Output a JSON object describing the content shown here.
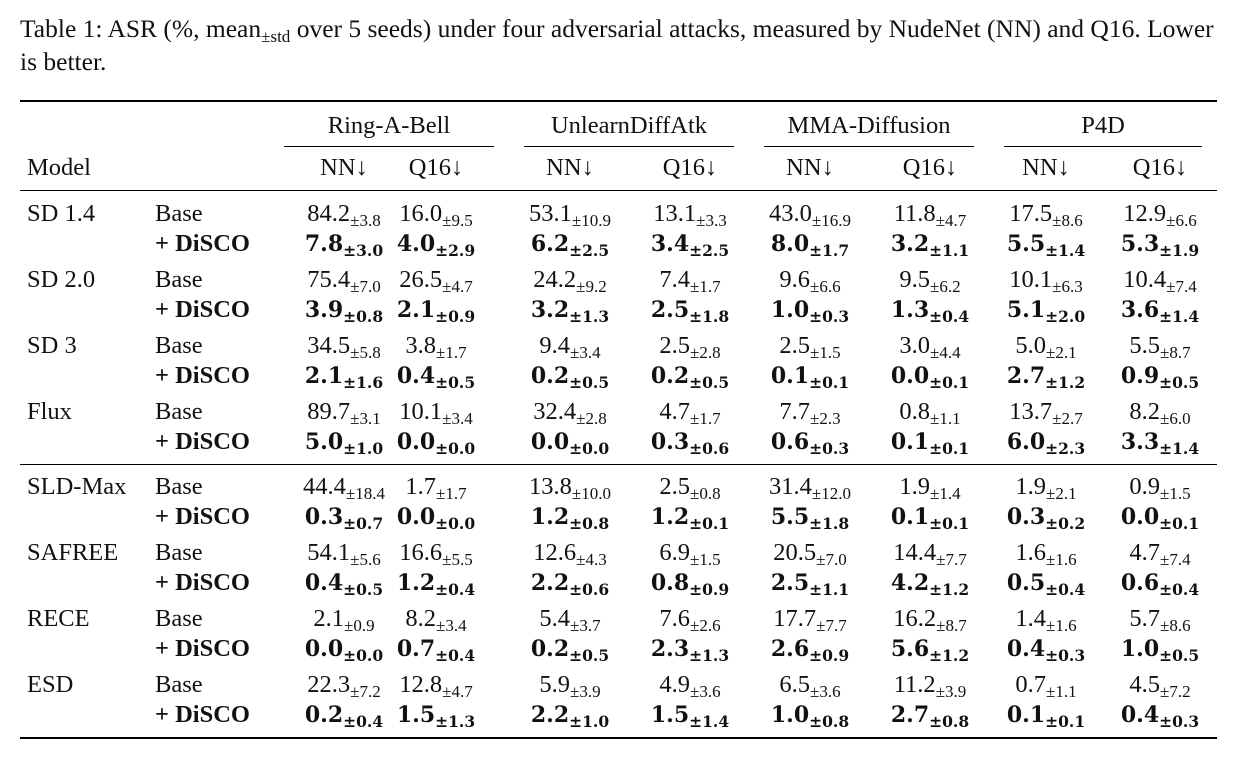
{
  "caption": {
    "pre": "Table 1: ASR (%, mean",
    "sub": "±std",
    "post": " over 5 seeds) under four adversarial attacks, measured by NudeNet (NN) and Q16. Lower is better."
  },
  "header": {
    "model_label": "Model",
    "attacks": [
      "Ring-A-Bell",
      "UnlearnDiffAtk",
      "MMA-Diffusion",
      "P4D"
    ],
    "metrics": [
      "NN↓",
      "Q16↓",
      "NN↓",
      "Q16↓",
      "NN↓",
      "Q16↓",
      "NN↓",
      "Q16↓"
    ]
  },
  "variants": {
    "base": "Base",
    "disco": "+ DiSCO"
  },
  "pm": "±",
  "groups": [
    {
      "models": [
        {
          "name": "SD 1.4",
          "base": [
            [
              "84.2",
              "3.8"
            ],
            [
              "16.0",
              "9.5"
            ],
            [
              "53.1",
              "10.9"
            ],
            [
              "13.1",
              "3.3"
            ],
            [
              "43.0",
              "16.9"
            ],
            [
              "11.8",
              "4.7"
            ],
            [
              "17.5",
              "8.6"
            ],
            [
              "12.9",
              "6.6"
            ]
          ],
          "disco": [
            [
              "7.8",
              "3.0"
            ],
            [
              "4.0",
              "2.9"
            ],
            [
              "6.2",
              "2.5"
            ],
            [
              "3.4",
              "2.5"
            ],
            [
              "8.0",
              "1.7"
            ],
            [
              "3.2",
              "1.1"
            ],
            [
              "5.5",
              "1.4"
            ],
            [
              "5.3",
              "1.9"
            ]
          ]
        },
        {
          "name": "SD 2.0",
          "base": [
            [
              "75.4",
              "7.0"
            ],
            [
              "26.5",
              "4.7"
            ],
            [
              "24.2",
              "9.2"
            ],
            [
              "7.4",
              "1.7"
            ],
            [
              "9.6",
              "6.6"
            ],
            [
              "9.5",
              "6.2"
            ],
            [
              "10.1",
              "6.3"
            ],
            [
              "10.4",
              "7.4"
            ]
          ],
          "disco": [
            [
              "3.9",
              "0.8"
            ],
            [
              "2.1",
              "0.9"
            ],
            [
              "3.2",
              "1.3"
            ],
            [
              "2.5",
              "1.8"
            ],
            [
              "1.0",
              "0.3"
            ],
            [
              "1.3",
              "0.4"
            ],
            [
              "5.1",
              "2.0"
            ],
            [
              "3.6",
              "1.4"
            ]
          ]
        },
        {
          "name": "SD 3",
          "base": [
            [
              "34.5",
              "5.8"
            ],
            [
              "3.8",
              "1.7"
            ],
            [
              "9.4",
              "3.4"
            ],
            [
              "2.5",
              "2.8"
            ],
            [
              "2.5",
              "1.5"
            ],
            [
              "3.0",
              "4.4"
            ],
            [
              "5.0",
              "2.1"
            ],
            [
              "5.5",
              "8.7"
            ]
          ],
          "disco": [
            [
              "2.1",
              "1.6"
            ],
            [
              "0.4",
              "0.5"
            ],
            [
              "0.2",
              "0.5"
            ],
            [
              "0.2",
              "0.5"
            ],
            [
              "0.1",
              "0.1"
            ],
            [
              "0.0",
              "0.1"
            ],
            [
              "2.7",
              "1.2"
            ],
            [
              "0.9",
              "0.5"
            ]
          ]
        },
        {
          "name": "Flux",
          "base": [
            [
              "89.7",
              "3.1"
            ],
            [
              "10.1",
              "3.4"
            ],
            [
              "32.4",
              "2.8"
            ],
            [
              "4.7",
              "1.7"
            ],
            [
              "7.7",
              "2.3"
            ],
            [
              "0.8",
              "1.1"
            ],
            [
              "13.7",
              "2.7"
            ],
            [
              "8.2",
              "6.0"
            ]
          ],
          "disco": [
            [
              "5.0",
              "1.0"
            ],
            [
              "0.0",
              "0.0"
            ],
            [
              "0.0",
              "0.0"
            ],
            [
              "0.3",
              "0.6"
            ],
            [
              "0.6",
              "0.3"
            ],
            [
              "0.1",
              "0.1"
            ],
            [
              "6.0",
              "2.3"
            ],
            [
              "3.3",
              "1.4"
            ]
          ]
        }
      ]
    },
    {
      "models": [
        {
          "name": "SLD-Max",
          "base": [
            [
              "44.4",
              "18.4"
            ],
            [
              "1.7",
              "1.7"
            ],
            [
              "13.8",
              "10.0"
            ],
            [
              "2.5",
              "0.8"
            ],
            [
              "31.4",
              "12.0"
            ],
            [
              "1.9",
              "1.4"
            ],
            [
              "1.9",
              "2.1"
            ],
            [
              "0.9",
              "1.5"
            ]
          ],
          "disco": [
            [
              "0.3",
              "0.7"
            ],
            [
              "0.0",
              "0.0"
            ],
            [
              "1.2",
              "0.8"
            ],
            [
              "1.2",
              "0.1"
            ],
            [
              "5.5",
              "1.8"
            ],
            [
              "0.1",
              "0.1"
            ],
            [
              "0.3",
              "0.2"
            ],
            [
              "0.0",
              "0.1"
            ]
          ]
        },
        {
          "name": "SAFREE",
          "base": [
            [
              "54.1",
              "5.6"
            ],
            [
              "16.6",
              "5.5"
            ],
            [
              "12.6",
              "4.3"
            ],
            [
              "6.9",
              "1.5"
            ],
            [
              "20.5",
              "7.0"
            ],
            [
              "14.4",
              "7.7"
            ],
            [
              "1.6",
              "1.6"
            ],
            [
              "4.7",
              "7.4"
            ]
          ],
          "disco": [
            [
              "0.4",
              "0.5"
            ],
            [
              "1.2",
              "0.4"
            ],
            [
              "2.2",
              "0.6"
            ],
            [
              "0.8",
              "0.9"
            ],
            [
              "2.5",
              "1.1"
            ],
            [
              "4.2",
              "1.2"
            ],
            [
              "0.5",
              "0.4"
            ],
            [
              "0.6",
              "0.4"
            ]
          ]
        },
        {
          "name": "RECE",
          "base": [
            [
              "2.1",
              "0.9"
            ],
            [
              "8.2",
              "3.4"
            ],
            [
              "5.4",
              "3.7"
            ],
            [
              "7.6",
              "2.6"
            ],
            [
              "17.7",
              "7.7"
            ],
            [
              "16.2",
              "8.7"
            ],
            [
              "1.4",
              "1.6"
            ],
            [
              "5.7",
              "8.6"
            ]
          ],
          "disco": [
            [
              "0.0",
              "0.0"
            ],
            [
              "0.7",
              "0.4"
            ],
            [
              "0.2",
              "0.5"
            ],
            [
              "2.3",
              "1.3"
            ],
            [
              "2.6",
              "0.9"
            ],
            [
              "5.6",
              "1.2"
            ],
            [
              "0.4",
              "0.3"
            ],
            [
              "1.0",
              "0.5"
            ]
          ]
        },
        {
          "name": "ESD",
          "base": [
            [
              "22.3",
              "7.2"
            ],
            [
              "12.8",
              "4.7"
            ],
            [
              "5.9",
              "3.9"
            ],
            [
              "4.9",
              "3.6"
            ],
            [
              "6.5",
              "3.6"
            ],
            [
              "11.2",
              "3.9"
            ],
            [
              "0.7",
              "1.1"
            ],
            [
              "4.5",
              "7.2"
            ]
          ],
          "disco": [
            [
              "0.2",
              "0.4"
            ],
            [
              "1.5",
              "1.3"
            ],
            [
              "2.2",
              "1.0"
            ],
            [
              "1.5",
              "1.4"
            ],
            [
              "1.0",
              "0.8"
            ],
            [
              "2.7",
              "0.8"
            ],
            [
              "0.1",
              "0.1"
            ],
            [
              "0.4",
              "0.3"
            ]
          ]
        }
      ]
    }
  ]
}
